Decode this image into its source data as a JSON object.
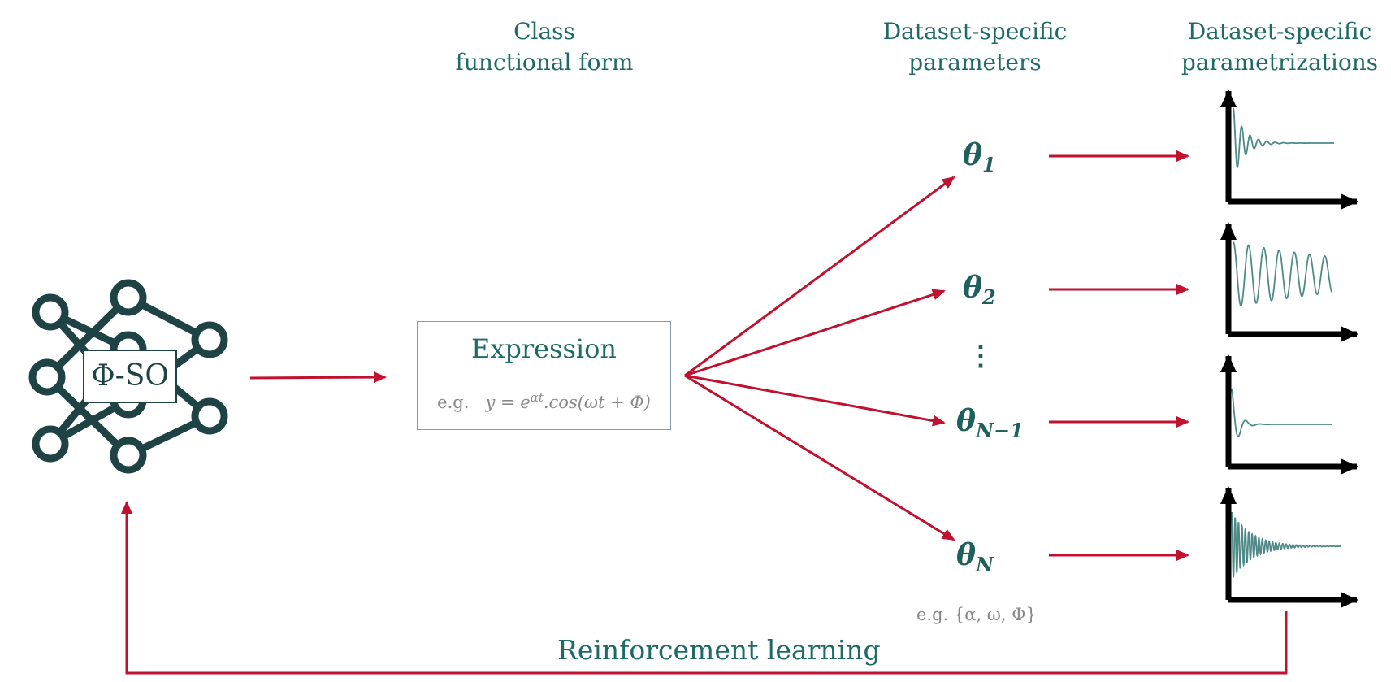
{
  "headers": {
    "class_form": [
      "Class",
      "functional form"
    ],
    "params": [
      "Dataset-specific",
      "parameters"
    ],
    "parametrizations": [
      "Dataset-specific",
      "parametrizations"
    ]
  },
  "network_label": "Φ-SO",
  "expression": {
    "title": "Expression",
    "example_prefix": "e.g.",
    "example_equation": "y =  e^{αt}.cos(ωt + Φ)"
  },
  "thetas": [
    {
      "symbol": "θ",
      "subscript": "1"
    },
    {
      "symbol": "θ",
      "subscript": "2"
    },
    {
      "symbol": "θ",
      "subscript": "N−1"
    },
    {
      "symbol": "θ",
      "subscript": "N"
    }
  ],
  "vdots": "⋮",
  "params_example": "e.g. {α, ω, Φ}",
  "feedback_label": "Reinforcement learning",
  "plots": [
    {
      "curve": "damped-oscillation-fast-decay"
    },
    {
      "curve": "sustained-oscillation-slow-decay"
    },
    {
      "curve": "damped-oscillation-very-fast-decay"
    },
    {
      "curve": "high-frequency-damped-oscillation"
    }
  ],
  "colors": {
    "arrow": "#c0112f",
    "teal_text": "#1e6a66",
    "network": "#1f4345",
    "curve": "#4f8a89",
    "gray_text": "#888888",
    "axis": "#000000"
  }
}
